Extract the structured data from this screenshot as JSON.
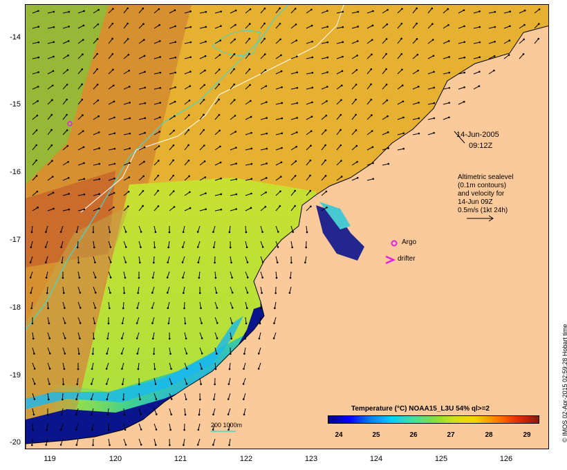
{
  "map": {
    "date": "14-Jun-2005",
    "time": "09:12Z",
    "altimetry_note": [
      "Altimetric sealevel",
      "(0.1m contours)",
      "and velocity for",
      "14-Jun 09Z",
      "0.5m/s (1kt 24h)"
    ],
    "legend_argo": "Argo",
    "legend_drifter": "drifter",
    "depth_contours": "200 1000m",
    "lat_ticks": [
      "-14",
      "-15",
      "-16",
      "-17",
      "-18",
      "-19",
      "-20"
    ],
    "lon_ticks": [
      "119",
      "120",
      "121",
      "122",
      "123",
      "124",
      "125",
      "126"
    ],
    "colorbar_title": "Temperature (°C) NOAA15_L3U 54% ql>=2",
    "colorbar_ticks": [
      "24",
      "25",
      "26",
      "27",
      "28",
      "29"
    ],
    "side_note": "© IMOS 02-Apr-2015 02:59:28 Hobart time",
    "colors": {
      "land": "#fbc99a",
      "argo_marker": "#e020e0",
      "contour_cyan": "#40d8d0",
      "contour_white": "#ffffff",
      "cold": "#00008b",
      "warm": "#8b1a00"
    }
  }
}
